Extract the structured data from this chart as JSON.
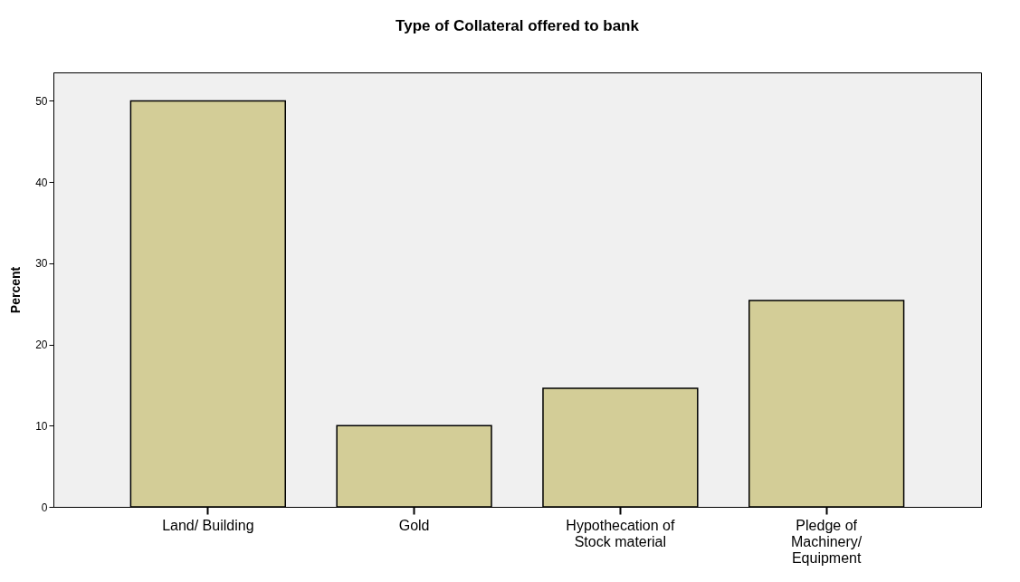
{
  "chart_data": {
    "type": "bar",
    "title": "Type of Collateral offered to bank",
    "ylabel": "Percent",
    "categories": [
      "Land/ Building",
      "Gold",
      "Hypothecation of Stock material",
      "Pledge of Machinery/ Equipment"
    ],
    "values": [
      50,
      10,
      14.6,
      25.4
    ],
    "color": "#d3cd97",
    "ylim": [
      0,
      53.5
    ],
    "yticks": [
      0,
      10,
      20,
      30,
      40,
      50
    ],
    "grid": false
  }
}
